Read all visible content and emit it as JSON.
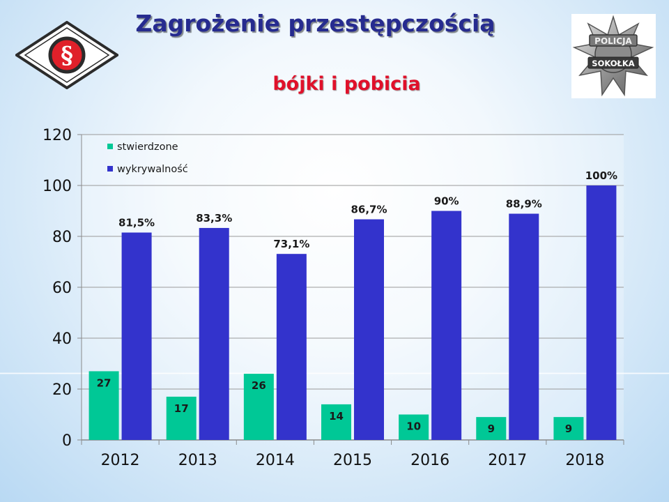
{
  "header": {
    "title": "Zagrożenie przestępczością",
    "subtitle": "bójki i pobicia"
  },
  "logos": {
    "left_symbol": "§",
    "badge_top": "POLICJA",
    "badge_bottom": "SOKOŁKA"
  },
  "colors": {
    "title": "#262b8f",
    "subtitle": "#e0102a",
    "stwierdzone": "#00c896",
    "wykrywalnosc": "#3333cc"
  },
  "chart_data": {
    "type": "bar",
    "title": "",
    "xlabel": "",
    "ylabel": "",
    "categories": [
      "2012",
      "2013",
      "2014",
      "2015",
      "2016",
      "2017",
      "2018"
    ],
    "ylim": [
      0,
      120
    ],
    "yticks": [
      0,
      20,
      40,
      60,
      80,
      100,
      120
    ],
    "grid": true,
    "legend_position": "top-left",
    "series": [
      {
        "name": "stwierdzone",
        "color": "#00c896",
        "values": [
          27,
          17,
          26,
          14,
          10,
          9,
          9
        ],
        "labels": [
          "27",
          "17",
          "26",
          "14",
          "10",
          "9",
          "9"
        ]
      },
      {
        "name": "wykrywalność",
        "color": "#3333cc",
        "values": [
          81.5,
          83.3,
          73.1,
          86.7,
          90,
          88.9,
          100
        ],
        "labels": [
          "81,5%",
          "83,3%",
          "73,1%",
          "86,7%",
          "90%",
          "88,9%",
          "100%"
        ]
      }
    ]
  }
}
